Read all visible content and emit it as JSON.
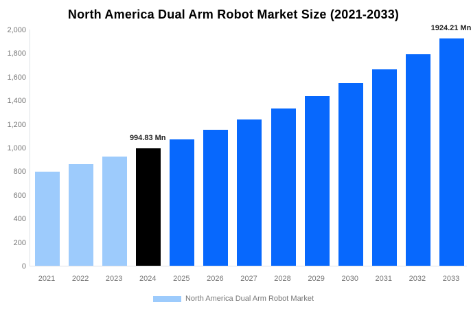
{
  "title": "North America Dual Arm Robot Market Size (2021-2033)",
  "legend": {
    "label": "North America Dual Arm Robot Market",
    "swatch_color": "#9DCBFC"
  },
  "colors": {
    "historical_bar": "#9DCBFC",
    "base_year_bar": "#000000",
    "forecast_bar": "#0768FD",
    "axis_line": "#DDE1E5",
    "tick_label": "#757575",
    "annotation_text": "#222222",
    "title_text": "#000000"
  },
  "chart_data": {
    "type": "bar",
    "title": "North America Dual Arm Robot Market Size (2021-2033)",
    "categories": [
      "2021",
      "2022",
      "2023",
      "2024",
      "2025",
      "2026",
      "2027",
      "2028",
      "2029",
      "2030",
      "2031",
      "2032",
      "2033"
    ],
    "series": [
      {
        "name": "North America Dual Arm Robot Market",
        "values": [
          798,
          859,
          924,
          994.83,
          1070,
          1152,
          1240,
          1334,
          1435,
          1545,
          1662,
          1789,
          1924.21
        ]
      }
    ],
    "unit": "Mn",
    "bar_colors": [
      "#9DCBFC",
      "#9DCBFC",
      "#9DCBFC",
      "#000000",
      "#0768FD",
      "#0768FD",
      "#0768FD",
      "#0768FD",
      "#0768FD",
      "#0768FD",
      "#0768FD",
      "#0768FD",
      "#0768FD"
    ],
    "annotations": [
      {
        "category": "2024",
        "text": "994.83 Mn"
      },
      {
        "category": "2033",
        "text": "1924.21 Mn"
      }
    ],
    "ylim": [
      0,
      2000
    ],
    "y_ticks": [
      0,
      200,
      400,
      600,
      800,
      1000,
      1200,
      1400,
      1600,
      1800,
      2000
    ],
    "y_tick_labels": [
      "0",
      "200",
      "400",
      "600",
      "800",
      "1,000",
      "1,200",
      "1,400",
      "1,600",
      "1,800",
      "2,000"
    ],
    "xlabel": "",
    "ylabel": "",
    "grid": false,
    "legend_position": "bottom"
  }
}
